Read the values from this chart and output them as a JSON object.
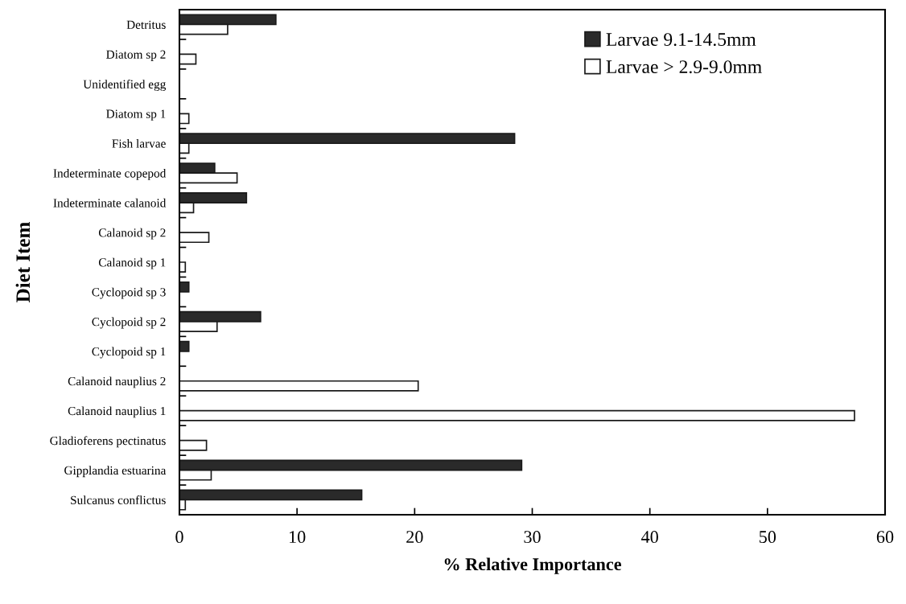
{
  "chart_data": {
    "type": "bar",
    "orientation": "horizontal",
    "xlabel": "% Relative Importance",
    "ylabel": "Diet Item",
    "categories": [
      "Detritus",
      "Diatom sp 2",
      "Unidentified egg",
      "Diatom sp 1",
      "Fish larvae",
      "Indeterminate copepod",
      "Indeterminate calanoid",
      "Calanoid sp 2",
      "Calanoid sp 1",
      "Cyclopoid sp 3",
      "Cyclopoid sp 2",
      "Cyclopoid sp 1",
      "Calanoid nauplius 2",
      "Calanoid nauplius 1",
      "Gladioferens pectinatus",
      "Gipplandia estuarina",
      "Sulcanus conflictus"
    ],
    "series": [
      {
        "name": "Larvae 9.1-14.5mm",
        "color": "#2a2a2a",
        "values": [
          8.2,
          0,
          0,
          0,
          28.5,
          3.0,
          5.7,
          0,
          0,
          0.8,
          6.9,
          0.8,
          0,
          0,
          0,
          29.1,
          15.5
        ]
      },
      {
        "name": "Larvae > 2.9-9.0mm",
        "color": "#ffffff",
        "values": [
          4.1,
          1.4,
          0,
          0.8,
          0.8,
          4.9,
          1.2,
          2.5,
          0.5,
          0,
          3.2,
          0,
          20.3,
          57.4,
          2.3,
          2.7,
          0.5
        ]
      }
    ],
    "xlim": [
      0,
      60
    ],
    "xticks": [
      0,
      10,
      20,
      30,
      40,
      50,
      60
    ],
    "grid": false,
    "legend": "top right"
  }
}
